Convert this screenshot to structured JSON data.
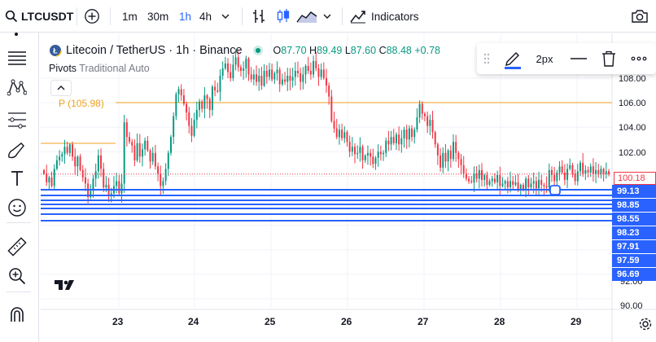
{
  "topbar": {
    "symbol": "LTCUSDT",
    "timeframes": [
      "1m",
      "30m",
      "1h",
      "4h"
    ],
    "active_timeframe": "1h",
    "indicators_label": "Indicators"
  },
  "legend": {
    "title": "Litecoin / TetherUS · 1h · Binance",
    "o_label": "O",
    "o_value": "87.70",
    "h_label": "H",
    "h_value": "89.49",
    "l_label": "L",
    "l_value": "87.60",
    "c_label": "C",
    "c_value": "88.48",
    "change": "+0.78"
  },
  "pivots": {
    "name": "Pivots",
    "params": "Traditional Auto"
  },
  "pivot_level_label": "P (105.98)",
  "drawbar": {
    "width_label": "2px"
  },
  "price_axis": {
    "ticks": [
      "108.00",
      "106.00",
      "104.00",
      "102.00",
      "92.00",
      "90.00"
    ],
    "last_price": "100.18",
    "line_tags": [
      "99.13",
      "98.85",
      "98.55",
      "98.23",
      "97.91",
      "97.59",
      "96.69"
    ]
  },
  "time_axis": {
    "ticks": [
      "23",
      "24",
      "25",
      "26",
      "27",
      "28",
      "29"
    ]
  },
  "colors": {
    "accent": "#2962ff",
    "up": "#089981",
    "down": "#f23645",
    "pivot": "#f0a020"
  },
  "chart_data": {
    "type": "candlestick",
    "symbol": "LTCUSDT",
    "interval": "1h",
    "x": [
      "23",
      "24",
      "25",
      "26",
      "27",
      "28",
      "29"
    ],
    "ylim": [
      89.6,
      110.5
    ],
    "pivot_P": 105.98,
    "horizontal_lines": [
      99.13,
      98.85,
      98.55,
      98.23,
      97.91,
      97.59,
      96.69
    ],
    "closes": [
      100.2,
      99.5,
      99.9,
      99.2,
      100.6,
      101.3,
      101.6,
      101.8,
      102.4,
      101.9,
      102.6,
      101.6,
      100.8,
      101.6,
      100.5,
      99.9,
      99.4,
      98.3,
      98.8,
      99.8,
      100.4,
      101.7,
      100.6,
      99.1,
      99.3,
      98.5,
      98.6,
      99.2,
      99.6,
      98.6,
      99.4,
      104.4,
      103.2,
      102.8,
      102.5,
      101.3,
      102.7,
      101.6,
      102.2,
      102.9,
      102.1,
      101.2,
      101.9,
      100.8,
      100.2,
      99.2,
      99.6,
      100.6,
      101.9,
      103.2,
      104.9,
      106.7,
      107.1,
      106.6,
      105.9,
      105.2,
      104.1,
      103.3,
      104.6,
      105.4,
      106.1,
      105.5,
      106.6,
      106.3,
      105.4,
      107.3,
      107.0,
      106.9,
      108.2,
      108.8,
      109.2,
      108.5,
      108.0,
      109.1,
      109.7,
      108.9,
      108.6,
      108.8,
      109.6,
      108.3,
      107.9,
      108.3,
      107.7,
      108.2,
      107.4,
      108.6,
      108.1,
      108.7,
      107.9,
      108.4,
      108.7,
      107.5,
      107.9,
      107.7,
      108.2,
      107.8,
      108.1,
      108.6,
      108.4,
      107.7,
      108.3,
      109.0,
      108.6,
      108.3,
      109.4,
      108.8,
      108.1,
      108.7,
      108.0,
      107.4,
      106.5,
      104.5,
      103.9,
      103.2,
      103.8,
      103.1,
      103.6,
      102.8,
      102.0,
      102.4,
      101.8,
      101.9,
      102.4,
      101.3,
      101.7,
      101.9,
      101.6,
      101.0,
      101.5,
      102.0,
      101.8,
      101.9,
      102.9,
      102.6,
      103.2,
      102.7,
      103.4,
      102.6,
      103.1,
      103.8,
      103.0,
      103.9,
      103.2,
      103.8,
      104.8,
      105.9,
      105.1,
      104.9,
      104.1,
      104.6,
      103.6,
      102.6,
      101.7,
      100.7,
      101.9,
      101.2,
      102.1,
      101.4,
      102.8,
      101.9,
      101.4,
      100.9,
      100.2,
      99.8,
      99.6,
      99.5,
      100.2,
      99.8,
      100.5,
      99.7,
      100.1,
      99.3,
      99.6,
      99.8,
      99.5,
      100.1,
      99.2,
      99.4,
      99.6,
      99.1,
      99.6,
      99.3,
      99.5,
      98.9,
      99.3,
      98.9,
      99.8,
      99.1,
      99.4,
      99.6,
      99.0,
      99.7,
      99.3,
      99.2,
      99.1,
      100.5,
      100.1,
      99.6,
      100.3,
      100.8,
      100.3,
      99.7,
      100.6,
      100.9,
      100.2,
      99.6,
      100.4,
      101.1,
      100.2,
      100.5,
      100.3,
      100.8,
      100.2,
      100.5,
      100.2,
      100.6,
      100.2,
      100.4,
      100.18
    ]
  }
}
